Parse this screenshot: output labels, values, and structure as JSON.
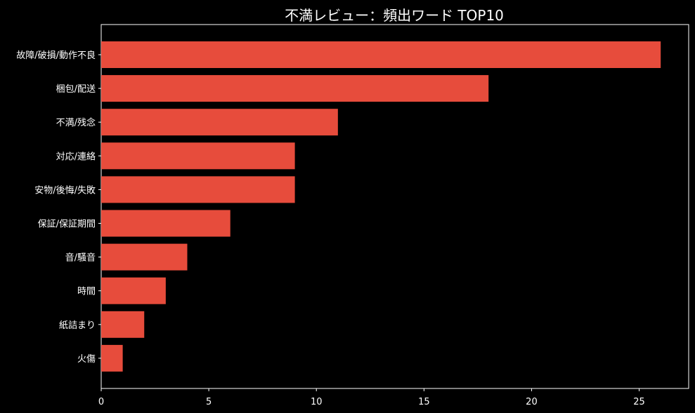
{
  "chart_data": {
    "type": "bar",
    "orientation": "horizontal",
    "title": "不満レビュー：頻出ワード TOP10",
    "xlabel": "",
    "ylabel": "",
    "categories": [
      "故障/破損/動作不良",
      "梱包/配送",
      "不満/残念",
      "対応/連絡",
      "安物/後悔/失敗",
      "保証/保証期間",
      "音/騒音",
      "時間",
      "紙詰まり",
      "火傷"
    ],
    "values": [
      26,
      18,
      11,
      9,
      9,
      6,
      4,
      3,
      2,
      1
    ],
    "xlim": [
      0,
      27.3
    ],
    "xticks": [
      0,
      5,
      10,
      15,
      20,
      25
    ],
    "grid": false,
    "legend": "none",
    "colors": {
      "background": "#000000",
      "bar": "#e74c3c",
      "text": "#ffffff",
      "axis": "#ffffff"
    }
  }
}
